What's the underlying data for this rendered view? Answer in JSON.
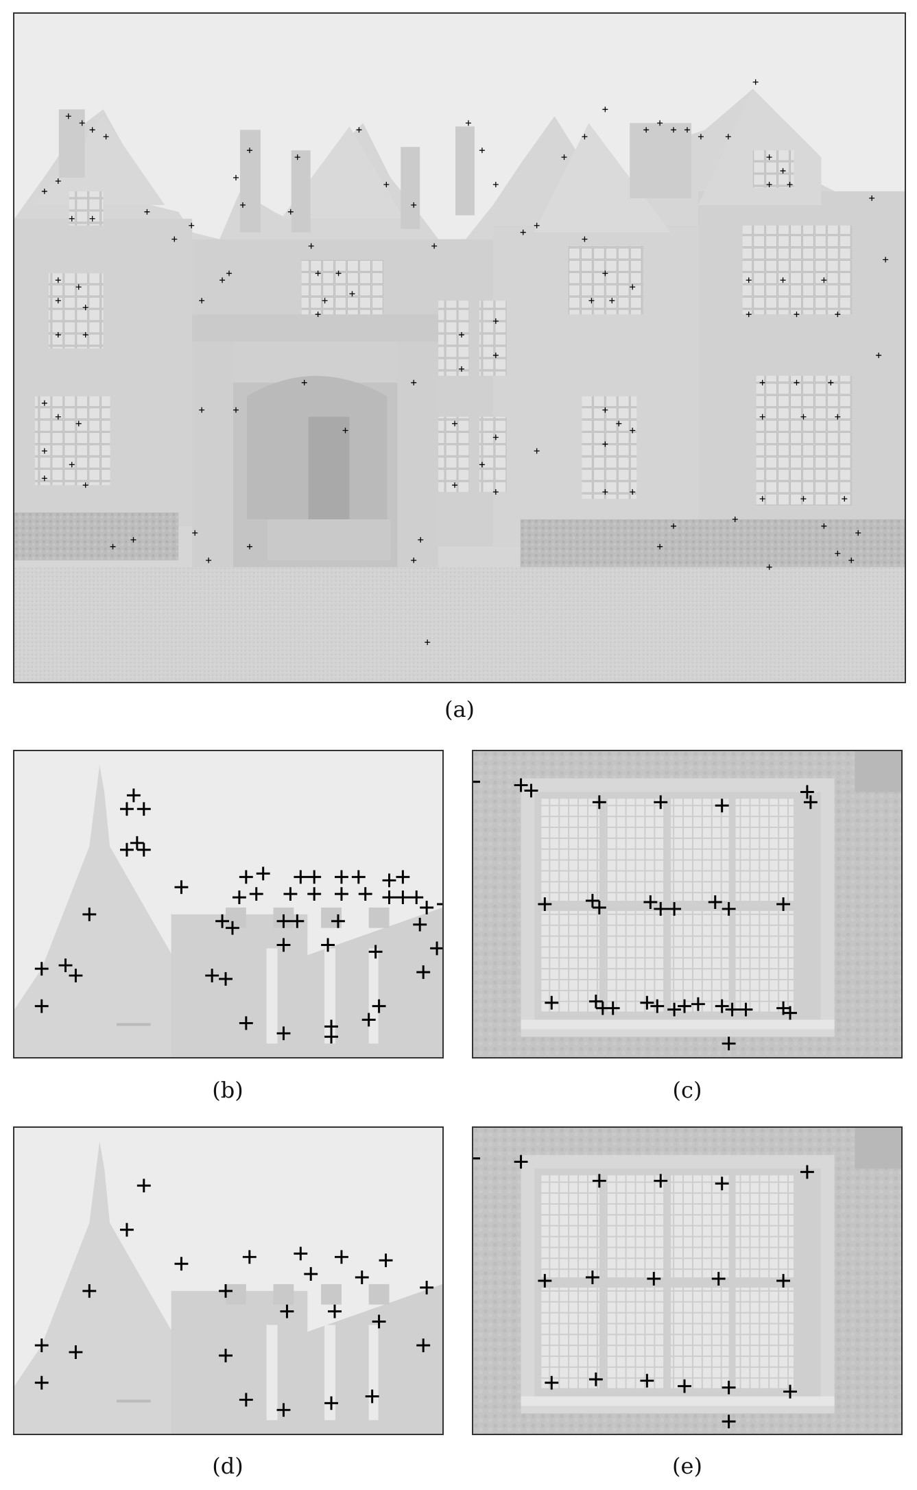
{
  "figure": {
    "captions": {
      "a": "(a)",
      "b": "(b)",
      "c": "(c)",
      "d": "(d)",
      "e": "(e)"
    }
  }
}
